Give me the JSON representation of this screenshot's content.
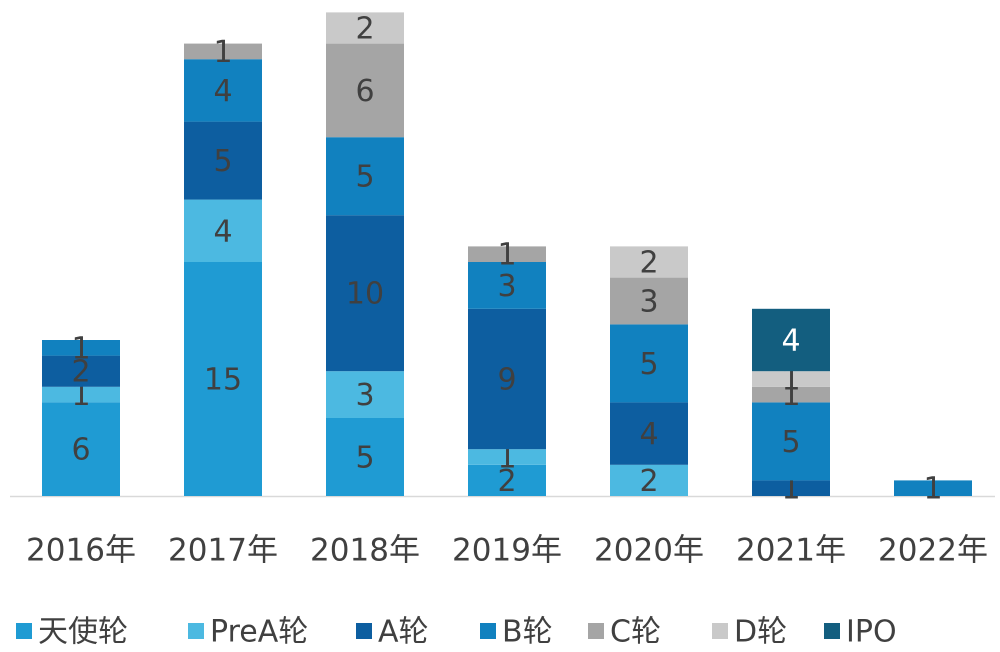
{
  "chart_data": {
    "type": "stacked_bar",
    "categories": [
      "2016年",
      "2017年",
      "2018年",
      "2019年",
      "2020年",
      "2021年",
      "2022年"
    ],
    "series": [
      {
        "name": "天使轮",
        "color": "#1f9bd3",
        "values": [
          6,
          15,
          5,
          2,
          null,
          null,
          null
        ]
      },
      {
        "name": "PreA轮",
        "color": "#4cb9e1",
        "values": [
          1,
          4,
          3,
          1,
          2,
          null,
          null
        ]
      },
      {
        "name": "A轮",
        "color": "#0d5ea0",
        "values": [
          2,
          5,
          10,
          9,
          4,
          1,
          null
        ]
      },
      {
        "name": "B轮",
        "color": "#1181bf",
        "values": [
          1,
          4,
          5,
          3,
          5,
          5,
          1
        ]
      },
      {
        "name": "C轮",
        "color": "#a5a5a5",
        "values": [
          null,
          1,
          6,
          1,
          3,
          1,
          null
        ]
      },
      {
        "name": "D轮",
        "color": "#c9c9c9",
        "values": [
          null,
          null,
          2,
          null,
          2,
          1,
          null
        ]
      },
      {
        "name": "IPO",
        "color": "#135e7f",
        "values": [
          null,
          null,
          null,
          null,
          null,
          4,
          null
        ]
      }
    ],
    "ylim": [
      0,
      31
    ]
  }
}
